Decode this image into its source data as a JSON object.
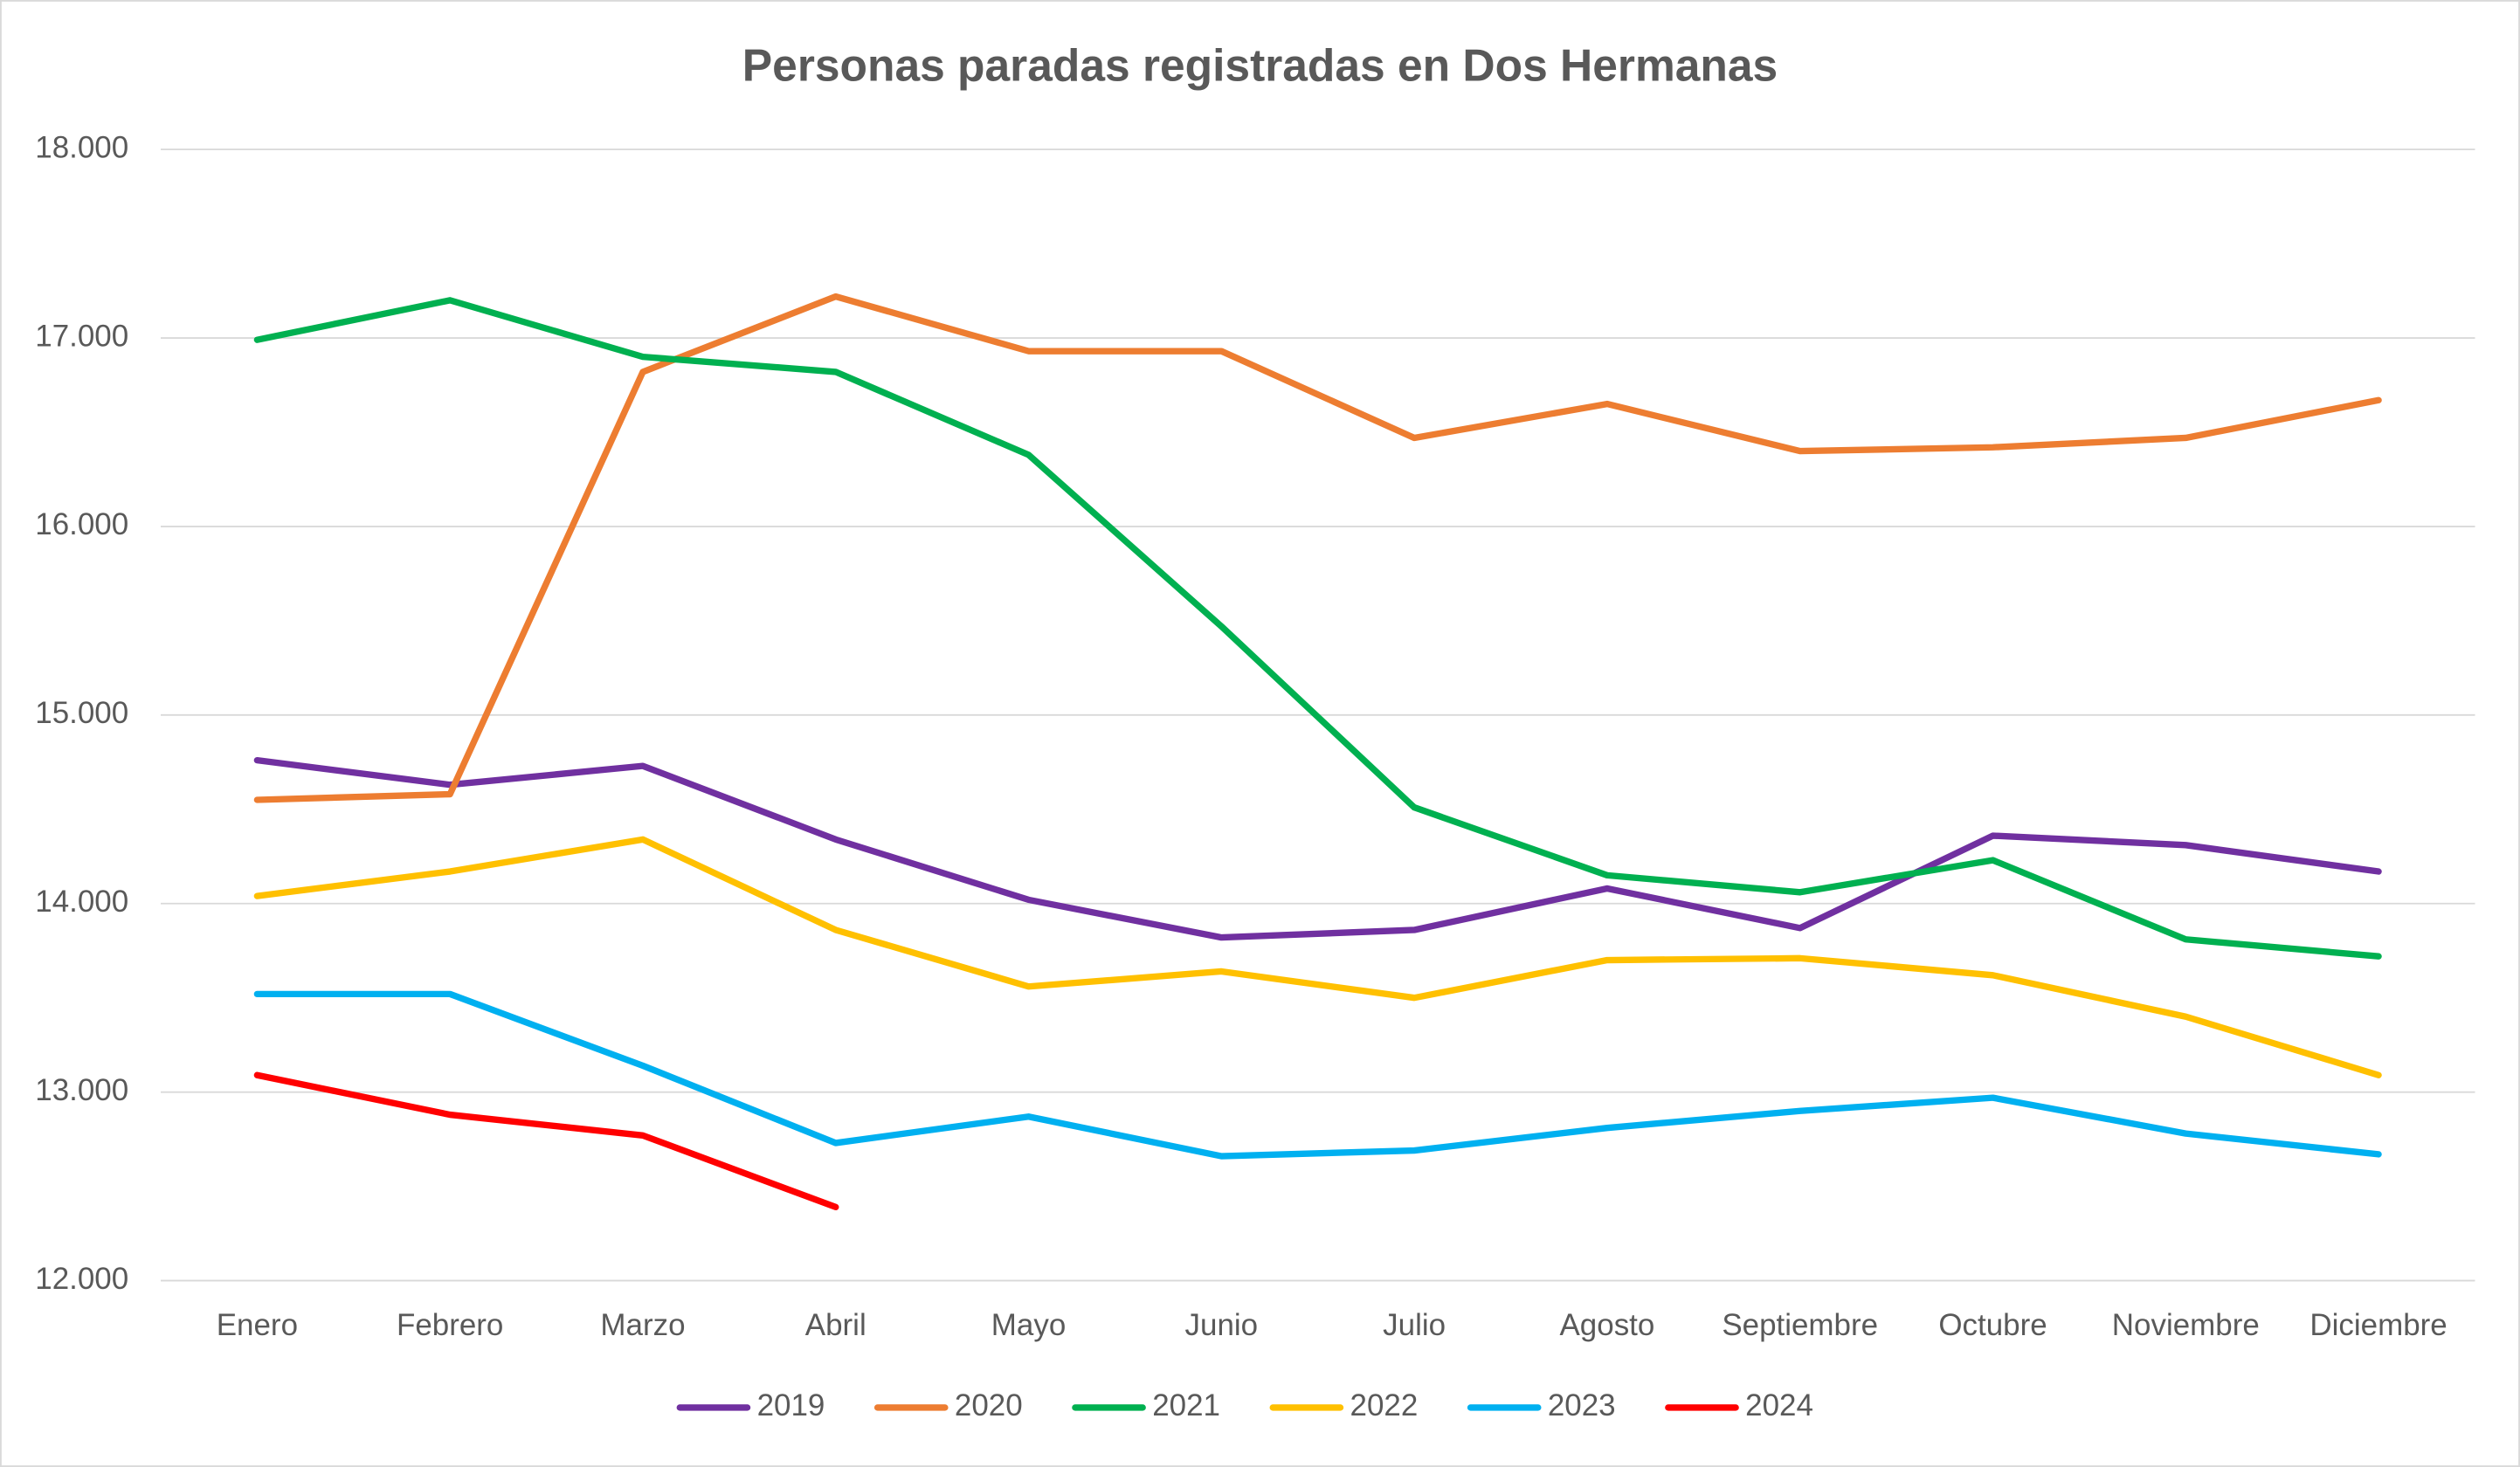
{
  "chart_data": {
    "type": "line",
    "title": "Personas paradas registradas en Dos Hermanas",
    "categories": [
      "Enero",
      "Febrero",
      "Marzo",
      "Abril",
      "Mayo",
      "Junio",
      "Julio",
      "Agosto",
      "Septiembre",
      "Octubre",
      "Noviembre",
      "Diciembre"
    ],
    "series": [
      {
        "name": "2019",
        "color": "#7030a0",
        "values": [
          14760,
          14630,
          14730,
          14340,
          14020,
          13820,
          13860,
          14080,
          13870,
          14360,
          14310,
          14170
        ]
      },
      {
        "name": "2020",
        "color": "#ed7d31",
        "values": [
          14550,
          14580,
          16820,
          17220,
          16930,
          16930,
          16470,
          16650,
          16400,
          16420,
          16470,
          16670
        ]
      },
      {
        "name": "2021",
        "color": "#00b050",
        "values": [
          16990,
          17200,
          16900,
          16820,
          16380,
          15470,
          14510,
          14150,
          14060,
          14230,
          13810,
          13720
        ]
      },
      {
        "name": "2022",
        "color": "#ffc000",
        "values": [
          14040,
          14170,
          14340,
          13860,
          13560,
          13640,
          13500,
          13700,
          13710,
          13620,
          13400,
          13090
        ]
      },
      {
        "name": "2023",
        "color": "#00b0f0",
        "values": [
          13520,
          13520,
          13140,
          12730,
          12870,
          12660,
          12690,
          12810,
          12900,
          12970,
          12780,
          12670
        ]
      },
      {
        "name": "2024",
        "color": "#ff0000",
        "values": [
          13090,
          12880,
          12770,
          12390,
          null,
          null,
          null,
          null,
          null,
          null,
          null,
          null
        ]
      }
    ],
    "ylim": [
      12000,
      18000
    ],
    "yticks": [
      {
        "value": 12000,
        "label": "12.000"
      },
      {
        "value": 13000,
        "label": "13.000"
      },
      {
        "value": 14000,
        "label": "14.000"
      },
      {
        "value": 15000,
        "label": "15.000"
      },
      {
        "value": 16000,
        "label": "16.000"
      },
      {
        "value": 17000,
        "label": "17.000"
      },
      {
        "value": 18000,
        "label": "18.000"
      }
    ],
    "grid": true,
    "legend": "bottom"
  }
}
